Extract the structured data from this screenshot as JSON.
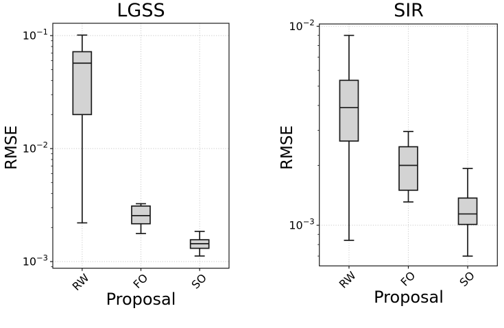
{
  "figure": {
    "background": "#ffffff"
  },
  "colors": {
    "box_fill": "#d3d3d3",
    "box_edge": "#1a1a1a",
    "axis": "#1a1a1a",
    "grid": "#cdcdcd",
    "text": "#000000"
  },
  "chart_data": [
    {
      "type": "box",
      "title": "LGSS",
      "xlabel": "Proposal",
      "ylabel": "RMSE",
      "yscale": "log",
      "grid": true,
      "categories": [
        "RW",
        "FO",
        "SO"
      ],
      "ylim": [
        0.000873,
        0.1285
      ],
      "yticks": [
        0.1,
        0.01,
        0.001
      ],
      "ytick_labels": [
        {
          "base": "10",
          "exponent": "−1"
        },
        {
          "base": "10",
          "exponent": "−2"
        },
        {
          "base": "10",
          "exponent": "−3"
        }
      ],
      "series": [
        {
          "category": "RW",
          "whisker_low": 0.0022,
          "q1": 0.02,
          "median": 0.057,
          "q3": 0.072,
          "whisker_high": 0.101
        },
        {
          "category": "FO",
          "whisker_low": 0.00177,
          "q1": 0.00216,
          "median": 0.00255,
          "q3": 0.0031,
          "whisker_high": 0.00325
        },
        {
          "category": "SO",
          "whisker_low": 0.00112,
          "q1": 0.00131,
          "median": 0.00144,
          "q3": 0.00156,
          "whisker_high": 0.00185
        }
      ]
    },
    {
      "type": "box",
      "title": "SIR",
      "xlabel": "Proposal",
      "ylabel": "RMSE",
      "yscale": "log",
      "grid": true,
      "categories": [
        "RW",
        "FO",
        "SO"
      ],
      "ylim": [
        0.000625,
        0.01027
      ],
      "yticks": [
        0.01,
        0.001
      ],
      "ytick_labels": [
        {
          "base": "10",
          "exponent": "−2"
        },
        {
          "base": "10",
          "exponent": "−3"
        }
      ],
      "series": [
        {
          "category": "RW",
          "whisker_low": 0.00084,
          "q1": 0.00265,
          "median": 0.0039,
          "q3": 0.00535,
          "whisker_high": 0.009
        },
        {
          "category": "FO",
          "whisker_low": 0.00131,
          "q1": 0.0015,
          "median": 0.002,
          "q3": 0.00248,
          "whisker_high": 0.00296
        },
        {
          "category": "SO",
          "whisker_low": 0.0007,
          "q1": 0.00101,
          "median": 0.00114,
          "q3": 0.00137,
          "whisker_high": 0.00193
        }
      ]
    }
  ]
}
